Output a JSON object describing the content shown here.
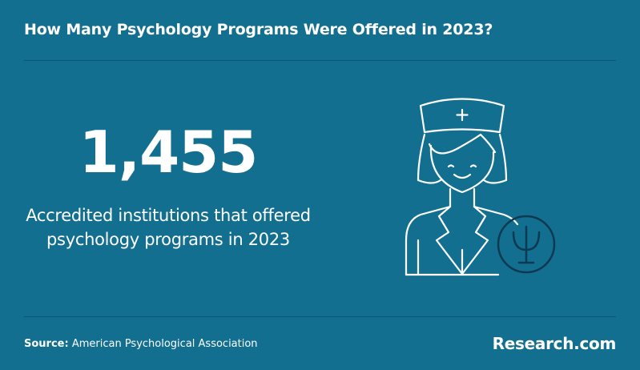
{
  "header": {
    "title": "How Many Psychology Programs Were Offered in 2023?"
  },
  "stat": {
    "value": "1,455",
    "description": "Accredited institutions that offered psychology programs in 2023"
  },
  "footer": {
    "source_label": "Source:",
    "source": "American Psychological Association",
    "brand": "Research.com"
  }
}
